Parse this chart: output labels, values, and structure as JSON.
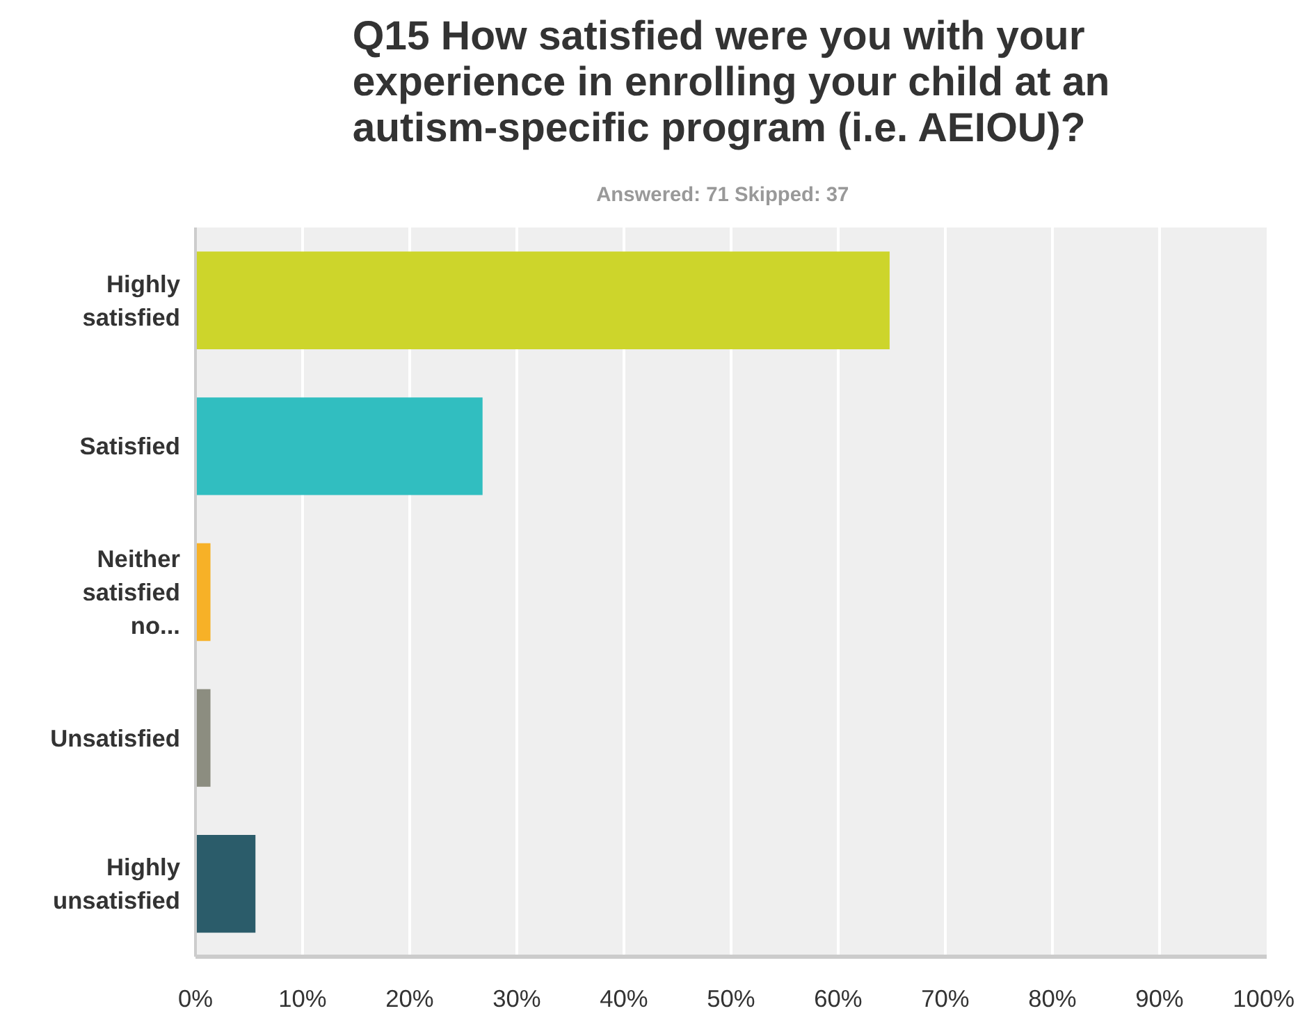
{
  "chart_data": {
    "type": "bar",
    "orientation": "horizontal",
    "title": "Q15 How satisfied were you with your experience in enrolling your child at an autism-specific program (i.e. AEIOU)?",
    "subtitle": "Answered: 71    Skipped: 37",
    "categories": [
      "Highly satisfied",
      "Satisfied",
      "Neither satisfied no...",
      "Unsatisfied",
      "Highly unsatisfied"
    ],
    "values": [
      64.8,
      26.8,
      1.4,
      1.4,
      5.6
    ],
    "colors": [
      "#cdd52b",
      "#31bec0",
      "#f7b127",
      "#8c8d80",
      "#2b5c6a"
    ],
    "xlim": [
      0,
      100
    ],
    "xticks": [
      {
        "value": 0,
        "label": "0%"
      },
      {
        "value": 10,
        "label": "10%"
      },
      {
        "value": 20,
        "label": "20%"
      },
      {
        "value": 30,
        "label": "30%"
      },
      {
        "value": 40,
        "label": "40%"
      },
      {
        "value": 50,
        "label": "50%"
      },
      {
        "value": 60,
        "label": "60%"
      },
      {
        "value": 70,
        "label": "70%"
      },
      {
        "value": 80,
        "label": "80%"
      },
      {
        "value": 90,
        "label": "90%"
      },
      {
        "value": 100,
        "label": "100%"
      }
    ],
    "grid": "x"
  }
}
